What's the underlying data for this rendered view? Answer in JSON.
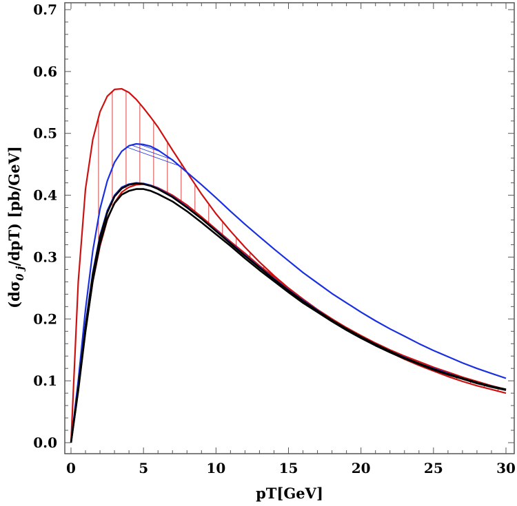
{
  "chart_data": {
    "type": "line",
    "title": "",
    "xlabel": "pT[GeV]",
    "ylabel_parts": {
      "prefix": "(dσ",
      "subscript": "0 j",
      "suffix": "/dpT) [pb/GeV]"
    },
    "xlim": [
      0,
      30
    ],
    "ylim": [
      0,
      0.7
    ],
    "x_ticks": [
      "0",
      "5",
      "10",
      "15",
      "20",
      "25",
      "30"
    ],
    "y_ticks": [
      "0.0",
      "0.1",
      "0.2",
      "0.3",
      "0.4",
      "0.5",
      "0.6",
      "0.7"
    ],
    "x": [
      0,
      0.5,
      1,
      1.5,
      2,
      2.5,
      3,
      3.5,
      4,
      4.5,
      5,
      5.5,
      6,
      7,
      8,
      9,
      10,
      11,
      12,
      13,
      14,
      15,
      16,
      17,
      18,
      19,
      20,
      21,
      22,
      23,
      24,
      25,
      26,
      27,
      28,
      29,
      30
    ],
    "series": [
      {
        "name": "red-band-upper",
        "color": "#cc1111",
        "values": [
          0,
          0.26,
          0.41,
          0.49,
          0.535,
          0.56,
          0.571,
          0.572,
          0.566,
          0.555,
          0.541,
          0.526,
          0.51,
          0.473,
          0.437,
          0.402,
          0.37,
          0.342,
          0.316,
          0.292,
          0.27,
          0.25,
          0.232,
          0.215,
          0.2,
          0.186,
          0.173,
          0.161,
          0.15,
          0.14,
          0.131,
          0.122,
          0.114,
          0.106,
          0.099,
          0.092,
          0.086
        ]
      },
      {
        "name": "red-band-lower",
        "color": "#cc1111",
        "values": [
          0,
          0.085,
          0.18,
          0.26,
          0.318,
          0.36,
          0.388,
          0.405,
          0.413,
          0.417,
          0.418,
          0.416,
          0.412,
          0.4,
          0.384,
          0.365,
          0.345,
          0.325,
          0.306,
          0.286,
          0.268,
          0.249,
          0.232,
          0.215,
          0.2,
          0.185,
          0.171,
          0.158,
          0.146,
          0.135,
          0.125,
          0.116,
          0.107,
          0.099,
          0.092,
          0.086,
          0.08
        ]
      },
      {
        "name": "blue-band-upper",
        "color": "#1a2fe0",
        "values": [
          0,
          0.1,
          0.215,
          0.31,
          0.378,
          0.423,
          0.453,
          0.471,
          0.48,
          0.483,
          0.482,
          0.479,
          0.473,
          0.457,
          0.437,
          0.417,
          0.396,
          0.374,
          0.353,
          0.333,
          0.313,
          0.294,
          0.275,
          0.258,
          0.241,
          0.226,
          0.211,
          0.197,
          0.184,
          0.172,
          0.16,
          0.149,
          0.139,
          0.129,
          0.12,
          0.112,
          0.104
        ]
      },
      {
        "name": "blue-band-lower",
        "color": "#1a2fe0",
        "values": [
          0,
          0.09,
          0.19,
          0.275,
          0.335,
          0.375,
          0.4,
          0.413,
          0.418,
          0.42,
          0.419,
          0.416,
          0.411,
          0.398,
          0.381,
          0.362,
          0.343,
          0.323,
          0.303,
          0.284,
          0.265,
          0.247,
          0.23,
          0.214,
          0.198,
          0.184,
          0.171,
          0.159,
          0.148,
          0.138,
          0.128,
          0.12,
          0.112,
          0.104,
          0.097,
          0.091,
          0.085
        ]
      },
      {
        "name": "black-central-upper",
        "color": "#000000",
        "values": [
          0,
          0.088,
          0.187,
          0.271,
          0.332,
          0.372,
          0.398,
          0.411,
          0.417,
          0.419,
          0.418,
          0.415,
          0.41,
          0.397,
          0.38,
          0.362,
          0.342,
          0.322,
          0.302,
          0.283,
          0.264,
          0.246,
          0.229,
          0.213,
          0.198,
          0.184,
          0.171,
          0.159,
          0.148,
          0.137,
          0.128,
          0.119,
          0.111,
          0.104,
          0.097,
          0.091,
          0.086
        ]
      },
      {
        "name": "black-central-lower",
        "color": "#000000",
        "values": [
          0,
          0.084,
          0.18,
          0.262,
          0.322,
          0.362,
          0.387,
          0.401,
          0.407,
          0.41,
          0.41,
          0.407,
          0.402,
          0.39,
          0.374,
          0.356,
          0.337,
          0.318,
          0.298,
          0.279,
          0.261,
          0.243,
          0.226,
          0.211,
          0.196,
          0.182,
          0.169,
          0.157,
          0.146,
          0.136,
          0.127,
          0.118,
          0.11,
          0.103,
          0.096,
          0.09,
          0.085
        ]
      }
    ],
    "bands": [
      {
        "name": "red-band",
        "upper": "red-band-upper",
        "lower": "red-band-lower",
        "hatch": "vertical",
        "color": "#cc1111"
      },
      {
        "name": "blue-band",
        "upper": "blue-band-upper",
        "lower": "blue-band-lower",
        "hatch": "diagonal",
        "color": "#1a2fe0"
      }
    ]
  }
}
